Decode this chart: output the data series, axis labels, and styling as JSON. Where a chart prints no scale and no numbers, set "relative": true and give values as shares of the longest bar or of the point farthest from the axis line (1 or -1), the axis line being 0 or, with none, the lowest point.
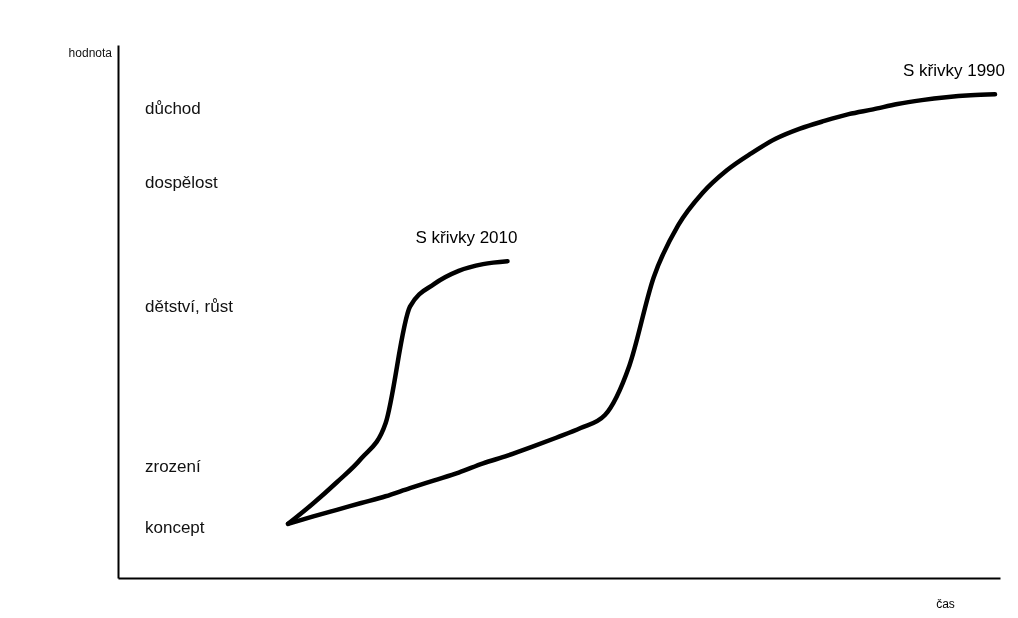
{
  "chart_data": {
    "type": "line",
    "relative": true,
    "xlabel": "čas",
    "categories": [
      null,
      null,
      null,
      null,
      null,
      null,
      null,
      null,
      null,
      null,
      null,
      null,
      null,
      null,
      null,
      null,
      null,
      null,
      null,
      null,
      null,
      null,
      null,
      null,
      null,
      null,
      null,
      null,
      null,
      null
    ],
    "annotations": [
      "hodnota",
      "koncept",
      "zrození",
      "dětství, růst",
      "dospělost",
      "důchod"
    ],
    "series": [
      {
        "name": "S křivky 2010",
        "color": "#000000",
        "values": [
          0.112,
          0.153,
          0.198,
          0.247,
          0.32,
          0.561,
          0.608,
          0.635,
          0.649,
          0.655,
          null,
          null,
          null,
          null,
          null,
          null,
          null,
          null,
          null,
          null,
          null,
          null,
          null,
          null,
          null,
          null,
          null,
          null,
          null,
          null
        ]
      },
      {
        "name": "S křivky 1990",
        "color": "#000000",
        "values": [
          0.112,
          0.127,
          0.141,
          0.155,
          0.169,
          0.186,
          0.202,
          0.218,
          0.237,
          0.253,
          0.271,
          0.29,
          0.31,
          0.337,
          0.439,
          0.622,
          0.729,
          0.796,
          0.843,
          0.878,
          0.908,
          0.929,
          0.945,
          0.959,
          0.969,
          0.98,
          0.988,
          0.994,
          0.998,
          1.0
        ]
      }
    ],
    "grid": false,
    "legend": false,
    "line_style": "solid",
    "marker": "none"
  }
}
